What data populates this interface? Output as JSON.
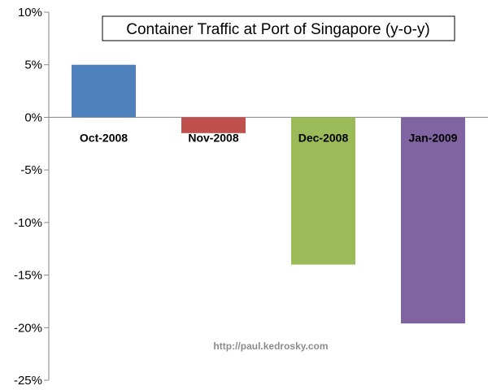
{
  "chart_data": {
    "type": "bar",
    "title": "Container Traffic at Port of Singapore (y-o-y)",
    "categories": [
      "Oct-2008",
      "Nov-2008",
      "Dec-2008",
      "Jan-2009"
    ],
    "values": [
      5.0,
      -1.5,
      -14.0,
      -19.6
    ],
    "colors": [
      "#4f81bd",
      "#c0504d",
      "#9bbb59",
      "#8064a2"
    ],
    "ylim": [
      -25,
      10
    ],
    "yticks": [
      10,
      5,
      0,
      -5,
      -10,
      -15,
      -20,
      -25
    ],
    "ytick_labels": [
      "10%",
      "5%",
      "0%",
      "-5%",
      "-10%",
      "-15%",
      "-20%",
      "-25%"
    ],
    "xlabel": "",
    "ylabel": "",
    "grid": false,
    "legend": "none",
    "watermark": "http://paul.kedrosky.com"
  }
}
